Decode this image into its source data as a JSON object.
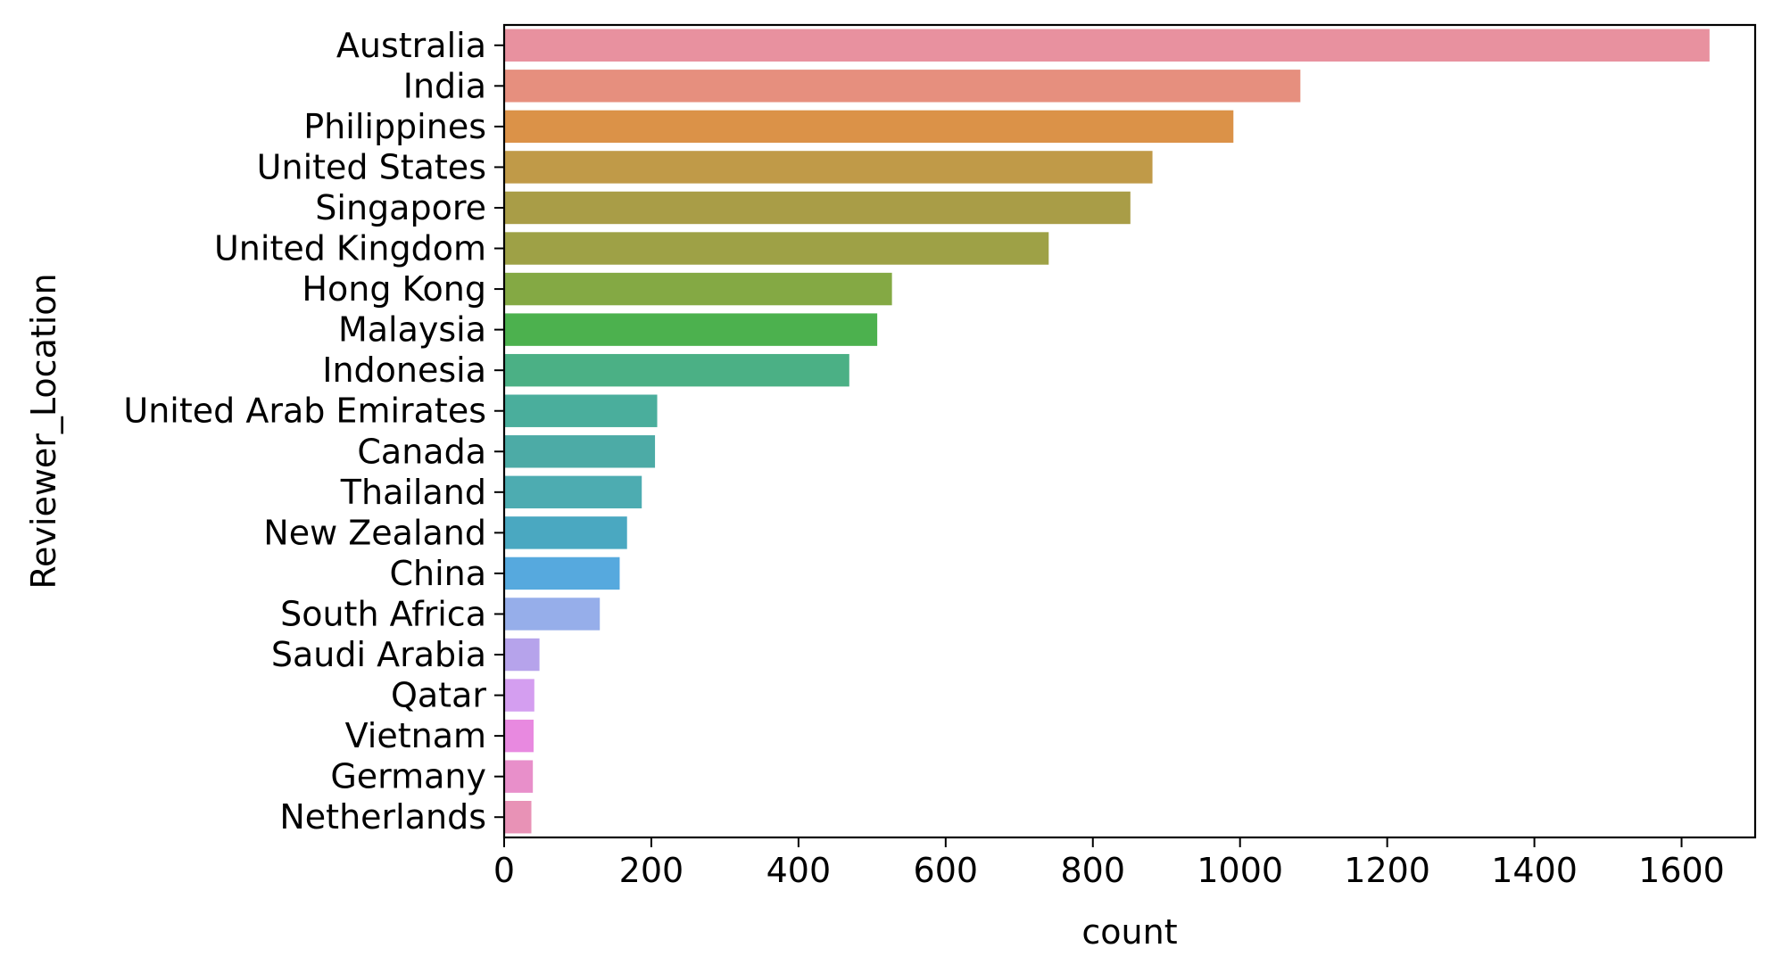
{
  "chart_data": {
    "type": "bar",
    "orientation": "horizontal",
    "title": "",
    "xlabel": "count",
    "ylabel": "Reviewer_Location",
    "xlim": [
      0,
      1700
    ],
    "xticks": [
      "0",
      "200",
      "400",
      "600",
      "800",
      "1000",
      "1200",
      "1400",
      "1600"
    ],
    "grid": false,
    "legend": "none",
    "categories": [
      "Australia",
      "India",
      "Philippines",
      "United States",
      "Singapore",
      "United Kingdom",
      "Hong Kong",
      "Malaysia",
      "Indonesia",
      "United Arab Emirates",
      "Canada",
      "Thailand",
      "New Zealand",
      "China",
      "South Africa",
      "Saudi Arabia",
      "Qatar",
      "Vietnam",
      "Germany",
      "Netherlands"
    ],
    "values": [
      1638,
      1082,
      991,
      881,
      851,
      740,
      527,
      507,
      469,
      208,
      205,
      187,
      167,
      157,
      130,
      48,
      41,
      40,
      39,
      37
    ],
    "colors": [
      "#e8919f",
      "#e68f7e",
      "#db9248",
      "#c09a48",
      "#a99d47",
      "#9ea146",
      "#84a944",
      "#4cb14e",
      "#4bb085",
      "#4aae9c",
      "#4caba6",
      "#4dacb1",
      "#4aa8c1",
      "#56a9de",
      "#96aeea",
      "#b6a3eb",
      "#d49ef0",
      "#e889e0",
      "#e88fca",
      "#e892b6"
    ]
  }
}
